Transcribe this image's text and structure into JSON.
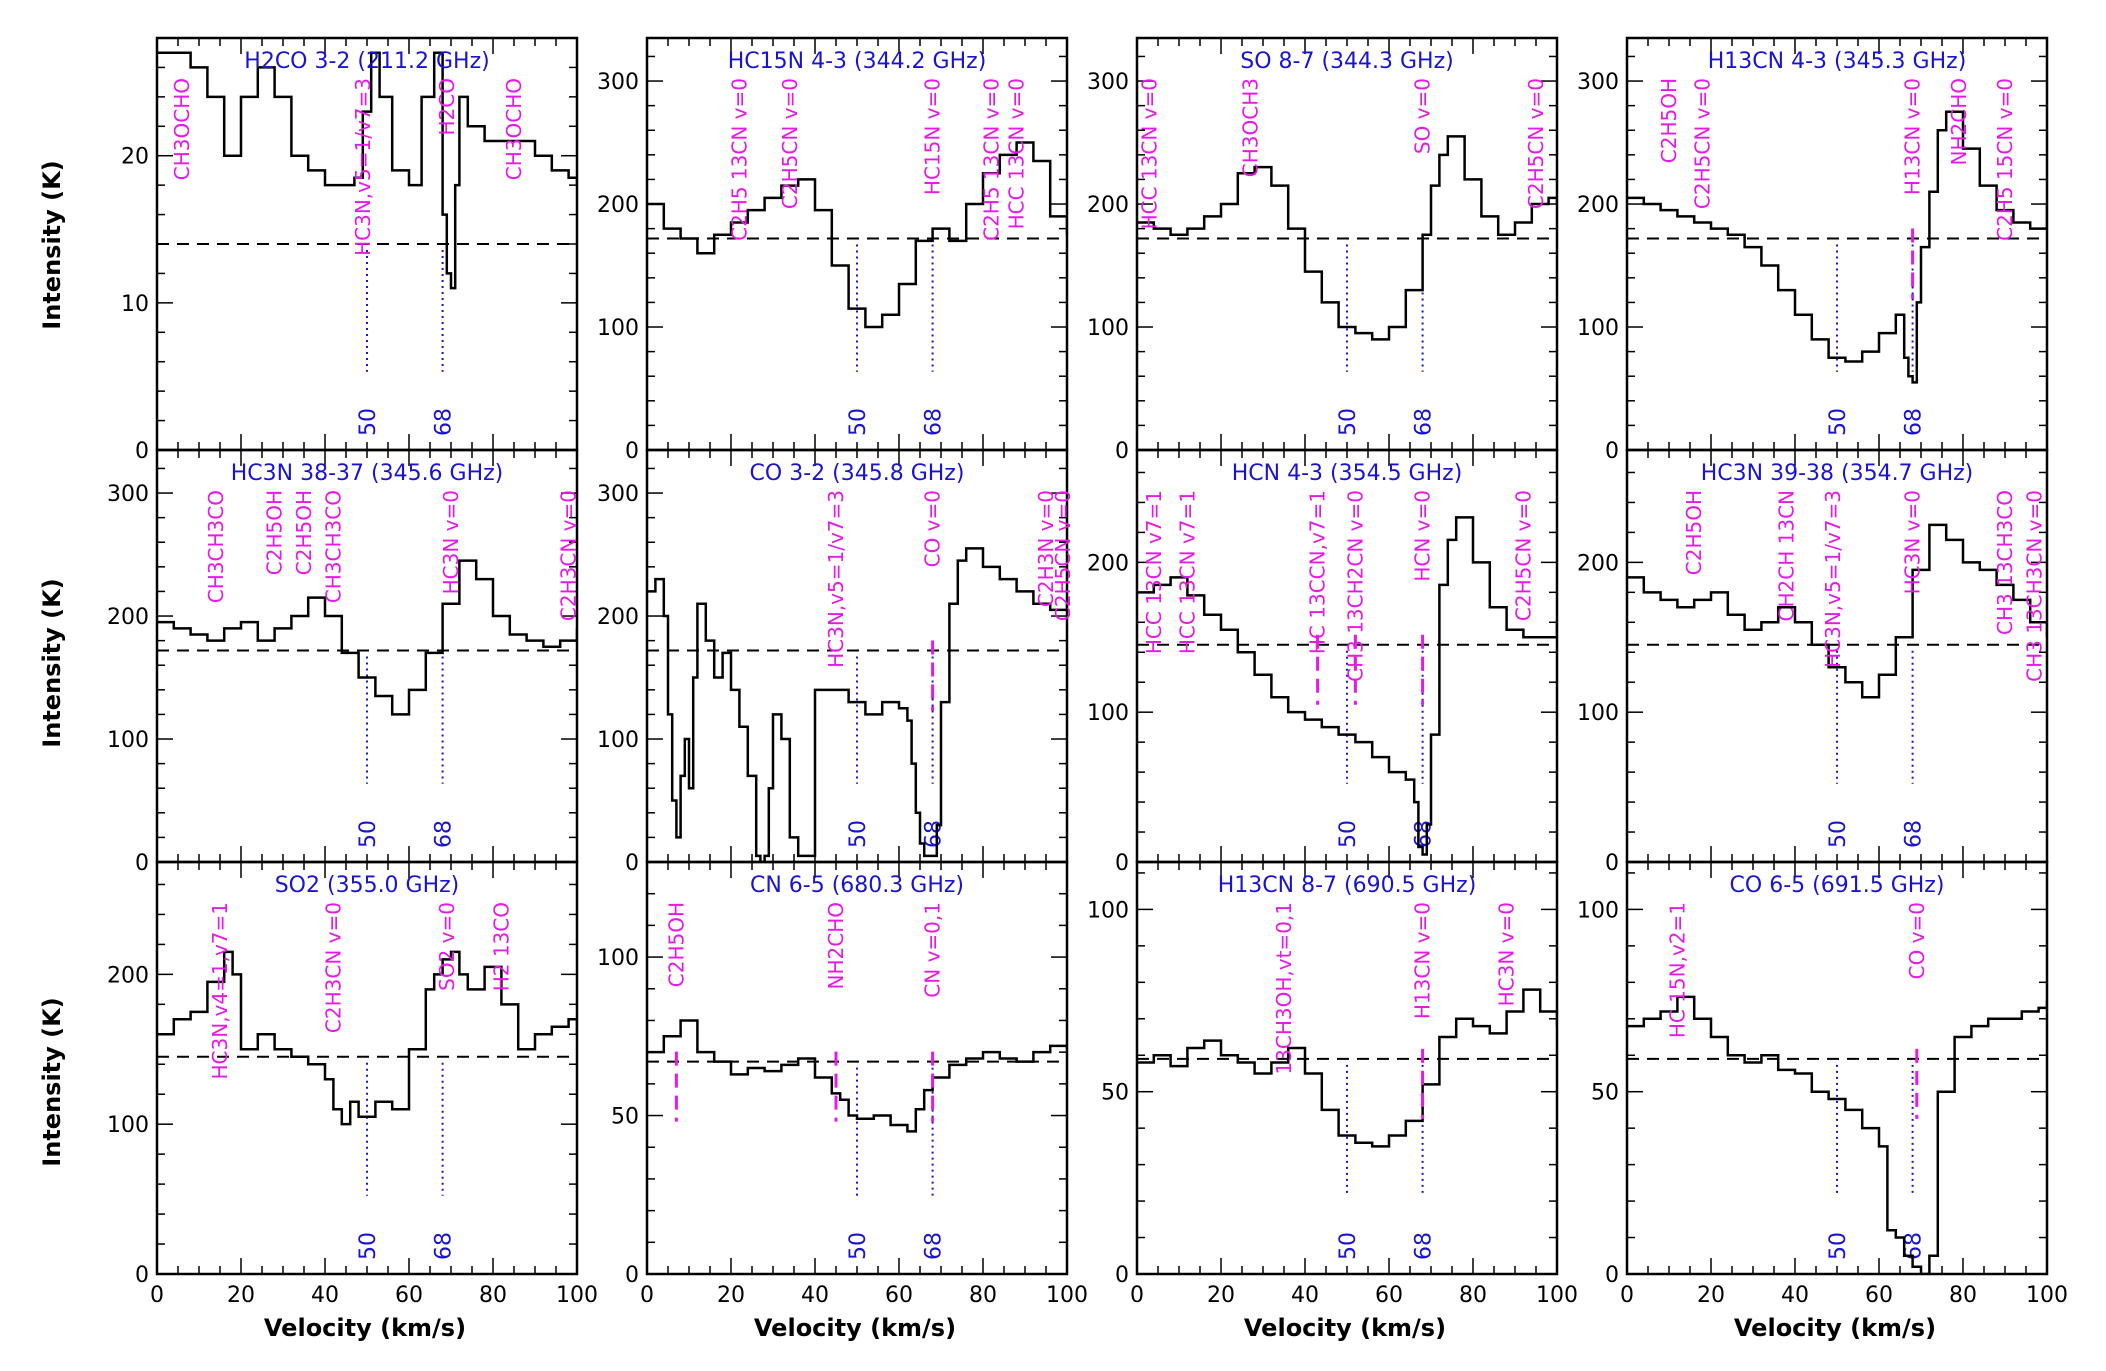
{
  "figure": {
    "x_axis_label": "Velocity (km/s)",
    "y_axis_label": "Intensity (K)",
    "colors": {
      "trace": "#000000",
      "title": "#1a14d2",
      "line_id": "#e619e6",
      "marker": "#1a14d2",
      "baseline": "#000000"
    }
  },
  "chart_data": [
    {
      "type": "line",
      "step": true,
      "title": "H2CO 3-2 (211.2 GHz)",
      "xlim": [
        0,
        100
      ],
      "ylim": [
        0,
        28
      ],
      "yticks": [
        0,
        10,
        20
      ],
      "baseline": 14,
      "markers": [
        50,
        68
      ],
      "x": [
        0,
        4,
        8,
        12,
        16,
        20,
        24,
        28,
        32,
        36,
        40,
        44,
        47,
        49,
        51,
        53,
        56,
        60,
        63,
        66,
        68,
        69,
        70,
        71,
        72,
        74,
        78,
        82,
        86,
        90,
        94,
        98,
        100
      ],
      "y": [
        27,
        27,
        26,
        24,
        20,
        24,
        26,
        24,
        20,
        19,
        18,
        18,
        18.5,
        23,
        27,
        24,
        19,
        18,
        24,
        27,
        16,
        12,
        11,
        18,
        24,
        22,
        21,
        21,
        21,
        20,
        19,
        18.5,
        18
      ],
      "lines": [
        {
          "label": "CH3OCHO",
          "x": 6,
          "dash": false
        },
        {
          "label": "HC3N,v5=1/v7=3",
          "x": 49,
          "dash": false
        },
        {
          "label": "H2CO",
          "x": 69,
          "dash": false
        },
        {
          "label": "CH3OCHO",
          "x": 85,
          "dash": false
        }
      ]
    },
    {
      "type": "line",
      "step": true,
      "title": "HC15N 4-3 (344.2 GHz)",
      "xlim": [
        0,
        100
      ],
      "ylim": [
        0,
        335
      ],
      "yticks": [
        0,
        100,
        200,
        300
      ],
      "baseline": 172,
      "markers": [
        50,
        68
      ],
      "x": [
        0,
        4,
        8,
        12,
        16,
        20,
        24,
        28,
        32,
        36,
        40,
        44,
        48,
        52,
        56,
        60,
        64,
        68,
        72,
        76,
        80,
        84,
        88,
        92,
        96,
        100
      ],
      "y": [
        200,
        180,
        172,
        160,
        175,
        185,
        195,
        205,
        215,
        220,
        195,
        150,
        115,
        100,
        110,
        135,
        170,
        180,
        170,
        200,
        225,
        240,
        250,
        235,
        190,
        175
      ],
      "lines": [
        {
          "label": "C2H5 13CN v=0",
          "x": 22,
          "dash": false
        },
        {
          "label": "C2H5CN v=0",
          "x": 34,
          "dash": false
        },
        {
          "label": "HC15N v=0",
          "x": 68,
          "dash": false
        },
        {
          "label": "C2H5 13CN v=0",
          "x": 82,
          "dash": false
        },
        {
          "label": "HCC 13CN v=0",
          "x": 88,
          "dash": false
        }
      ]
    },
    {
      "type": "line",
      "step": true,
      "title": "SO 8-7 (344.3 GHz)",
      "xlim": [
        0,
        100
      ],
      "ylim": [
        0,
        335
      ],
      "yticks": [
        0,
        100,
        200,
        300
      ],
      "baseline": 172,
      "markers": [
        50,
        68
      ],
      "x": [
        0,
        4,
        8,
        12,
        16,
        20,
        24,
        28,
        32,
        36,
        40,
        44,
        48,
        52,
        56,
        60,
        64,
        68,
        70,
        72,
        74,
        78,
        82,
        86,
        90,
        94,
        98,
        100
      ],
      "y": [
        185,
        180,
        175,
        180,
        190,
        200,
        225,
        230,
        215,
        180,
        145,
        120,
        100,
        95,
        90,
        100,
        130,
        175,
        215,
        240,
        255,
        220,
        190,
        175,
        185,
        200,
        205,
        200
      ],
      "lines": [
        {
          "label": "HCC 13CN v=0",
          "x": 3,
          "dash": false
        },
        {
          "label": "CH3OCH3",
          "x": 27,
          "dash": false
        },
        {
          "label": "SO v=0",
          "x": 68,
          "dash": false
        },
        {
          "label": "C2H5CN v=0",
          "x": 95,
          "dash": false
        }
      ]
    },
    {
      "type": "line",
      "step": true,
      "title": "H13CN 4-3 (345.3 GHz)",
      "xlim": [
        0,
        100
      ],
      "ylim": [
        0,
        335
      ],
      "yticks": [
        0,
        100,
        200,
        300
      ],
      "baseline": 172,
      "markers": [
        50,
        68
      ],
      "x": [
        0,
        4,
        8,
        12,
        16,
        20,
        24,
        28,
        32,
        36,
        40,
        44,
        48,
        52,
        56,
        60,
        64,
        66,
        67,
        68,
        69,
        70,
        72,
        74,
        76,
        80,
        84,
        88,
        92,
        96,
        100
      ],
      "y": [
        205,
        200,
        195,
        190,
        185,
        180,
        175,
        165,
        150,
        130,
        110,
        90,
        75,
        72,
        80,
        95,
        110,
        75,
        60,
        55,
        120,
        165,
        210,
        260,
        275,
        245,
        215,
        195,
        185,
        180,
        200
      ],
      "lines": [
        {
          "label": "C2H5OH",
          "x": 10,
          "dash": false
        },
        {
          "label": "C2H5CN v=0",
          "x": 18,
          "dash": false
        },
        {
          "label": "H13CN v=0",
          "x": 68,
          "dash": true
        },
        {
          "label": "NH2CHO",
          "x": 79,
          "dash": false
        },
        {
          "label": "C2H5 15CN v=0",
          "x": 90,
          "dash": false
        }
      ]
    },
    {
      "type": "line",
      "step": true,
      "title": "HC3N 38-37 (345.6 GHz)",
      "xlim": [
        0,
        100
      ],
      "ylim": [
        0,
        335
      ],
      "yticks": [
        0,
        100,
        200,
        300
      ],
      "baseline": 172,
      "markers": [
        50,
        68
      ],
      "x": [
        0,
        4,
        8,
        12,
        16,
        20,
        24,
        28,
        32,
        36,
        40,
        44,
        48,
        52,
        56,
        60,
        64,
        68,
        72,
        76,
        80,
        84,
        88,
        92,
        96,
        100
      ],
      "y": [
        195,
        190,
        185,
        180,
        190,
        195,
        180,
        190,
        200,
        215,
        200,
        170,
        150,
        135,
        120,
        140,
        170,
        210,
        245,
        230,
        200,
        185,
        180,
        175,
        180,
        190
      ],
      "lines": [
        {
          "label": "CH3CH3CO",
          "x": 14,
          "dash": false
        },
        {
          "label": "C2H5OH",
          "x": 28,
          "dash": false
        },
        {
          "label": "C2H5OH",
          "x": 35,
          "dash": false
        },
        {
          "label": "CH3CH3CO",
          "x": 42,
          "dash": false
        },
        {
          "label": "HC3N v=0",
          "x": 70,
          "dash": false
        },
        {
          "label": "C2H3CN v=0",
          "x": 98,
          "dash": false
        }
      ]
    },
    {
      "type": "line",
      "step": true,
      "title": "CO 3-2 (345.8 GHz)",
      "xlim": [
        0,
        100
      ],
      "ylim": [
        0,
        335
      ],
      "yticks": [
        0,
        100,
        200,
        300
      ],
      "baseline": 172,
      "markers": [
        50,
        68
      ],
      "x": [
        0,
        2,
        4,
        5,
        6,
        7,
        8,
        9,
        10,
        11,
        12,
        14,
        16,
        18,
        20,
        22,
        24,
        26,
        27,
        28,
        29,
        30,
        32,
        34,
        36,
        40,
        44,
        48,
        52,
        56,
        60,
        62,
        63,
        64,
        65,
        66,
        68,
        69,
        70,
        72,
        74,
        76,
        80,
        84,
        88,
        92,
        96,
        100
      ],
      "y": [
        220,
        230,
        200,
        120,
        50,
        20,
        70,
        100,
        60,
        150,
        210,
        180,
        150,
        170,
        140,
        110,
        70,
        5,
        0,
        5,
        60,
        120,
        100,
        20,
        5,
        140,
        140,
        130,
        120,
        130,
        125,
        115,
        80,
        40,
        15,
        5,
        5,
        30,
        130,
        210,
        245,
        255,
        240,
        230,
        220,
        210,
        205,
        210
      ],
      "lines": [
        {
          "label": "HC3N,v5=1/v7=3",
          "x": 45,
          "dash": false
        },
        {
          "label": "CO v=0",
          "x": 68,
          "dash": true
        },
        {
          "label": "C2H3N v=0",
          "x": 95,
          "dash": false
        },
        {
          "label": "C2H5CN v=0",
          "x": 99,
          "dash": false
        }
      ]
    },
    {
      "type": "line",
      "step": true,
      "title": "HCN 4-3 (354.5 GHz)",
      "xlim": [
        0,
        100
      ],
      "ylim": [
        0,
        275
      ],
      "yticks": [
        0,
        100,
        200
      ],
      "baseline": 145,
      "markers": [
        50,
        68
      ],
      "x": [
        0,
        4,
        8,
        12,
        16,
        20,
        24,
        28,
        32,
        36,
        40,
        44,
        48,
        52,
        56,
        60,
        64,
        66,
        67,
        68,
        69,
        70,
        72,
        74,
        76,
        80,
        84,
        88,
        92,
        96,
        100
      ],
      "y": [
        180,
        185,
        190,
        178,
        165,
        155,
        140,
        125,
        110,
        100,
        95,
        90,
        85,
        80,
        70,
        60,
        55,
        40,
        10,
        5,
        25,
        85,
        185,
        215,
        230,
        200,
        170,
        155,
        150,
        150,
        160
      ],
      "lines": [
        {
          "label": "HCC 13CN v7=1",
          "x": 4,
          "dash": false
        },
        {
          "label": "HCC 13CN v7=1",
          "x": 12,
          "dash": false
        },
        {
          "label": "HC 13CCN,v7=1",
          "x": 43,
          "dash": true
        },
        {
          "label": "CH3 13CH2CN v=0",
          "x": 52,
          "dash": true
        },
        {
          "label": "HCN v=0",
          "x": 68,
          "dash": true
        },
        {
          "label": "C2H5CN v=0",
          "x": 92,
          "dash": false
        }
      ]
    },
    {
      "type": "line",
      "step": true,
      "title": "HC3N 39-38 (354.7 GHz)",
      "xlim": [
        0,
        100
      ],
      "ylim": [
        0,
        275
      ],
      "yticks": [
        0,
        100,
        200
      ],
      "baseline": 145,
      "markers": [
        50,
        68
      ],
      "x": [
        0,
        4,
        8,
        12,
        16,
        20,
        24,
        28,
        32,
        36,
        40,
        44,
        48,
        52,
        56,
        60,
        64,
        68,
        72,
        76,
        80,
        84,
        88,
        92,
        96,
        100
      ],
      "y": [
        190,
        180,
        175,
        170,
        175,
        180,
        165,
        155,
        160,
        170,
        160,
        145,
        130,
        120,
        110,
        125,
        150,
        195,
        225,
        215,
        200,
        195,
        185,
        175,
        160,
        150
      ],
      "lines": [
        {
          "label": "C2H5OH",
          "x": 16,
          "dash": false
        },
        {
          "label": "CH2CH 13CN",
          "x": 38,
          "dash": false
        },
        {
          "label": "HC3N,v5=1/v7=3",
          "x": 49,
          "dash": false
        },
        {
          "label": "HC3N v=0",
          "x": 68,
          "dash": false
        },
        {
          "label": "CH3 13CH3CO",
          "x": 90,
          "dash": false
        },
        {
          "label": "CH3 13CH3CN v=0",
          "x": 97,
          "dash": false
        }
      ]
    },
    {
      "type": "line",
      "step": true,
      "title": "SO2 (355.0 GHz)",
      "xlim": [
        0,
        100
      ],
      "ylim": [
        0,
        275
      ],
      "yticks": [
        0,
        100,
        200
      ],
      "baseline": 145,
      "markers": [
        50,
        68
      ],
      "x": [
        0,
        4,
        8,
        12,
        16,
        18,
        20,
        24,
        28,
        32,
        36,
        40,
        42,
        44,
        46,
        48,
        52,
        56,
        60,
        64,
        66,
        68,
        70,
        72,
        74,
        78,
        82,
        86,
        90,
        94,
        98,
        100
      ],
      "y": [
        160,
        170,
        175,
        195,
        215,
        200,
        150,
        160,
        150,
        145,
        140,
        130,
        110,
        100,
        115,
        105,
        115,
        110,
        150,
        190,
        200,
        210,
        215,
        200,
        190,
        205,
        180,
        150,
        160,
        165,
        170,
        160
      ],
      "lines": [
        {
          "label": "HC3N,v4=1,v7=1",
          "x": 15,
          "dash": false
        },
        {
          "label": "C2H3CN v=0",
          "x": 42,
          "dash": false
        },
        {
          "label": "SO2 v=0",
          "x": 69,
          "dash": false
        },
        {
          "label": "H2 13CO",
          "x": 82,
          "dash": false
        }
      ]
    },
    {
      "type": "line",
      "step": true,
      "title": "CN 6-5 (680.3 GHz)",
      "xlim": [
        0,
        100
      ],
      "ylim": [
        0,
        130
      ],
      "yticks": [
        0,
        50,
        100
      ],
      "baseline": 67,
      "markers": [
        50,
        68
      ],
      "x": [
        0,
        4,
        8,
        12,
        16,
        20,
        24,
        28,
        32,
        36,
        40,
        44,
        46,
        48,
        50,
        54,
        58,
        62,
        64,
        66,
        68,
        72,
        76,
        80,
        84,
        88,
        92,
        96,
        100
      ],
      "y": [
        70,
        75,
        80,
        70,
        67,
        63,
        65,
        64,
        66,
        68,
        62,
        57,
        55,
        50,
        49,
        50,
        47,
        45,
        52,
        58,
        62,
        66,
        68,
        70,
        68,
        67,
        70,
        72,
        71
      ],
      "lines": [
        {
          "label": "C2H5OH",
          "x": 7,
          "dash": true
        },
        {
          "label": "NH2CHO",
          "x": 45,
          "dash": true
        },
        {
          "label": "CN v=0,1",
          "x": 68,
          "dash": true
        }
      ]
    },
    {
      "type": "line",
      "step": true,
      "title": "H13CN 8-7 (690.5 GHz)",
      "xlim": [
        0,
        100
      ],
      "ylim": [
        0,
        113
      ],
      "yticks": [
        0,
        50,
        100
      ],
      "baseline": 59,
      "markers": [
        50,
        68
      ],
      "x": [
        0,
        4,
        8,
        12,
        16,
        20,
        24,
        28,
        32,
        36,
        40,
        44,
        48,
        52,
        56,
        60,
        64,
        68,
        72,
        76,
        80,
        84,
        88,
        92,
        96,
        100
      ],
      "y": [
        58,
        60,
        57,
        62,
        64,
        60,
        58,
        55,
        58,
        62,
        55,
        45,
        38,
        36,
        35,
        38,
        42,
        52,
        65,
        70,
        68,
        66,
        72,
        78,
        72,
        68
      ],
      "lines": [
        {
          "label": "13CH3OH,vt=0,1",
          "x": 35,
          "dash": false
        },
        {
          "label": "H13CN v=0",
          "x": 68,
          "dash": true
        },
        {
          "label": "HC3N v=0",
          "x": 88,
          "dash": false
        }
      ]
    },
    {
      "type": "line",
      "step": true,
      "title": "CO 6-5 (691.5 GHz)",
      "xlim": [
        0,
        100
      ],
      "ylim": [
        0,
        113
      ],
      "yticks": [
        0,
        50,
        100
      ],
      "baseline": 59,
      "markers": [
        50,
        68
      ],
      "x": [
        0,
        4,
        8,
        12,
        16,
        20,
        24,
        28,
        32,
        36,
        40,
        44,
        48,
        52,
        56,
        60,
        62,
        64,
        66,
        68,
        70,
        72,
        74,
        78,
        82,
        86,
        90,
        94,
        98,
        100
      ],
      "y": [
        68,
        70,
        72,
        76,
        70,
        65,
        60,
        58,
        60,
        56,
        55,
        50,
        48,
        45,
        40,
        35,
        12,
        10,
        5,
        2,
        0,
        5,
        50,
        65,
        68,
        70,
        70,
        72,
        73,
        75
      ],
      "lines": [
        {
          "label": "HC 15N,v2=1",
          "x": 12,
          "dash": false
        },
        {
          "label": "CO v=0",
          "x": 69,
          "dash": true
        }
      ]
    }
  ]
}
